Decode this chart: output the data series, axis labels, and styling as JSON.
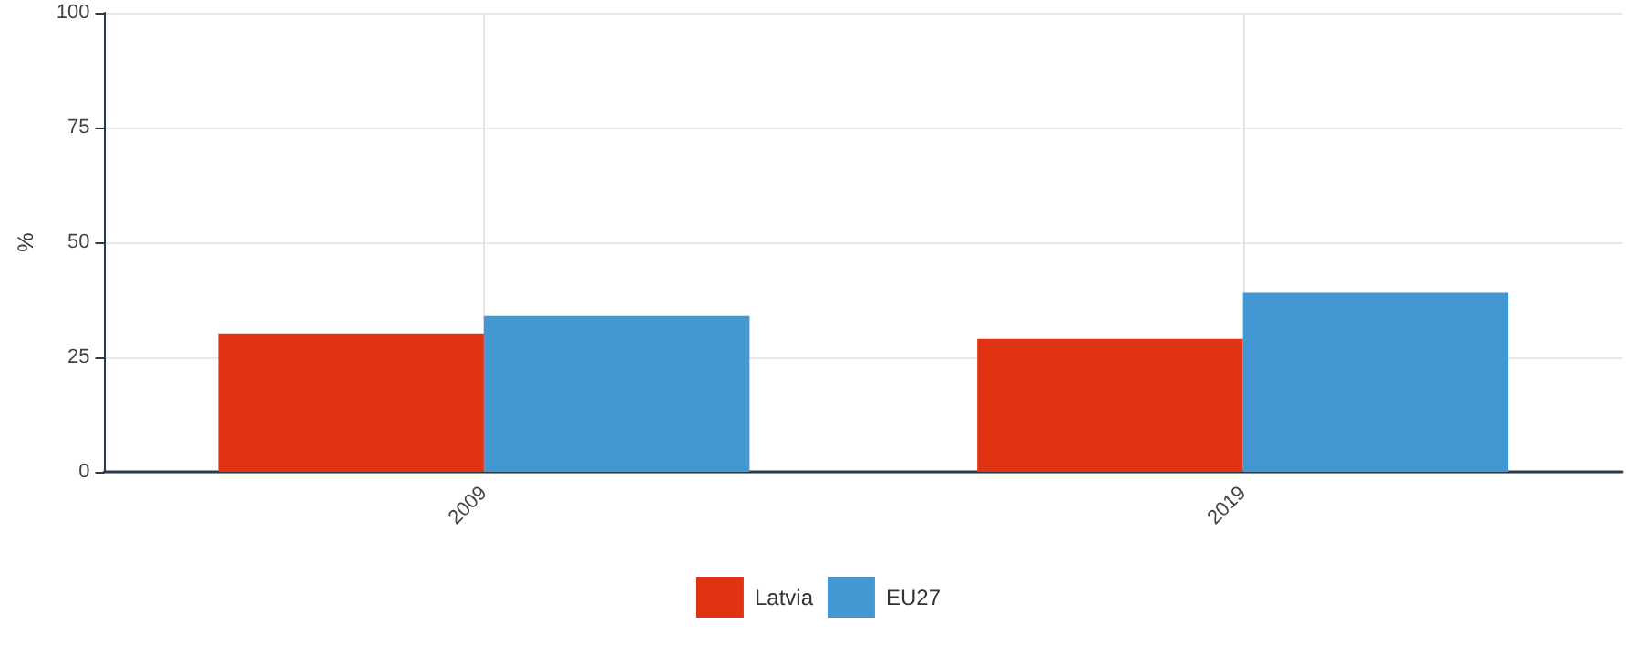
{
  "chart_data": {
    "type": "bar",
    "ylabel": "%",
    "categories": [
      "2009",
      "2019"
    ],
    "series": [
      {
        "name": "Latvia",
        "color": "#e03314",
        "values": [
          30,
          29
        ]
      },
      {
        "name": "EU27",
        "color": "#4498d1",
        "values": [
          34,
          39
        ]
      }
    ],
    "ylim": [
      0,
      100
    ],
    "yticks": [
      0,
      25,
      50,
      75,
      100
    ],
    "grid": true,
    "legend": "bottom"
  }
}
